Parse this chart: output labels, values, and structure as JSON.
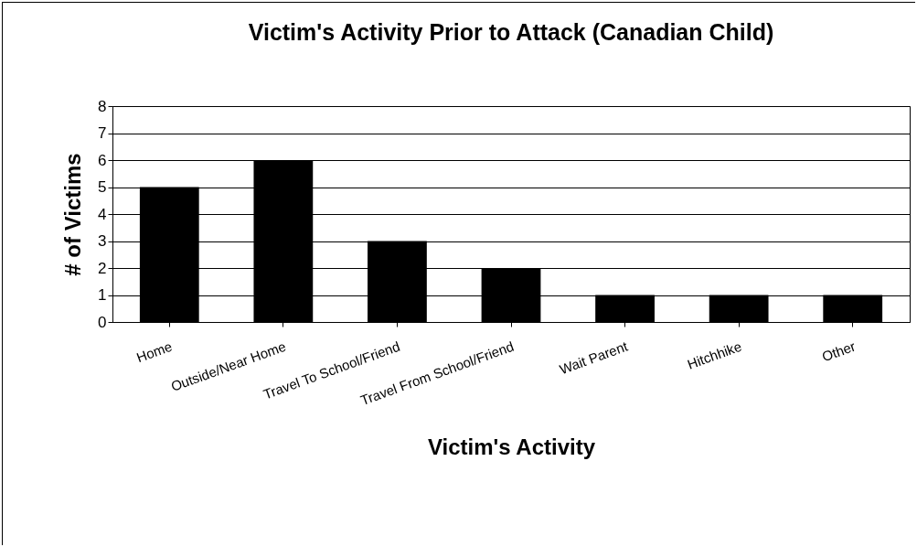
{
  "chart_data": {
    "type": "bar",
    "title": "Victim's Activity Prior to Attack (Canadian Child)",
    "xlabel": "Victim's Activity",
    "ylabel": "# of Victims",
    "categories": [
      "Home",
      "Outside/Near Home",
      "Travel To School/Friend",
      "Travel From School/Friend",
      "Wait Parent",
      "Hitchhike",
      "Other"
    ],
    "values": [
      5,
      6,
      3,
      2,
      1,
      1,
      1
    ],
    "color": "#000000",
    "ylim": [
      0,
      8
    ],
    "yticks": [
      0,
      1,
      2,
      3,
      4,
      5,
      6,
      7,
      8
    ],
    "grid": "y"
  }
}
